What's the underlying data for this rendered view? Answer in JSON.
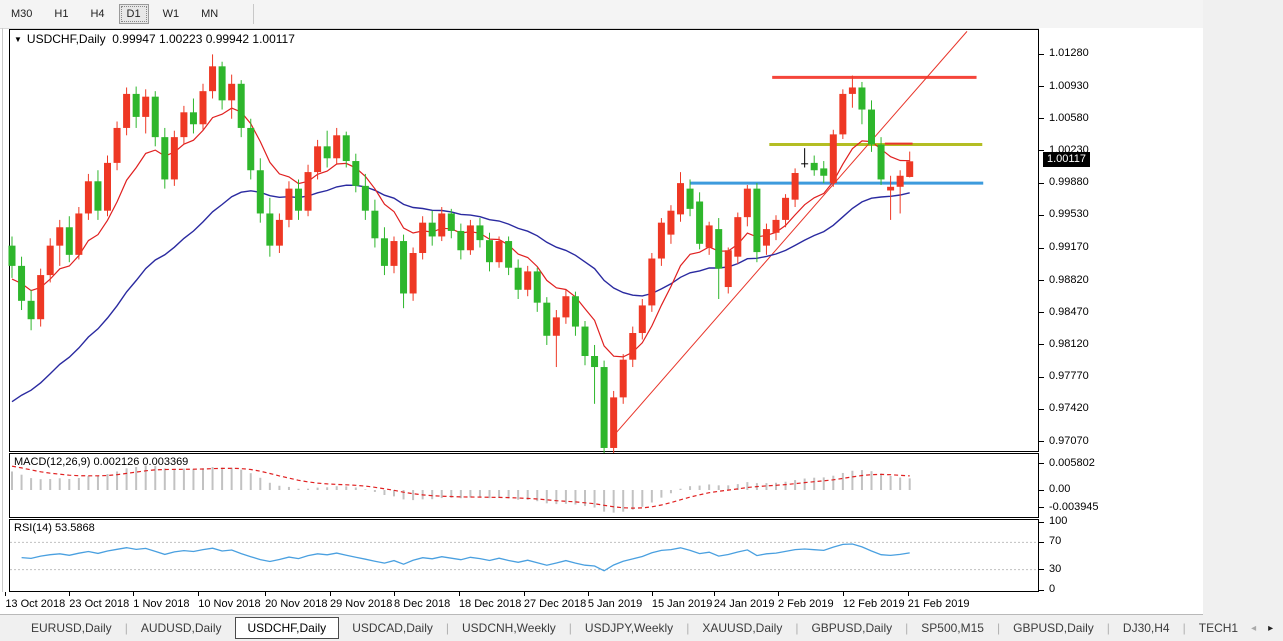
{
  "toolbar": {
    "timeframes": [
      "M30",
      "H1",
      "H4",
      "D1",
      "W1",
      "MN"
    ],
    "active": "D1"
  },
  "title": {
    "dropdown_icon": "▼",
    "symbol": "USDCHF,Daily",
    "ohlc": "0.99947 1.00223 0.99942 1.00117"
  },
  "indicators": {
    "macd_label": "MACD(12,26,9)",
    "macd_values": "0.002126 0.003369",
    "rsi_label": "RSI(14)",
    "rsi_value": "53.5868"
  },
  "price_axis": {
    "labels": [
      "1.01280",
      "1.00930",
      "1.00580",
      "1.00230",
      "0.99880",
      "0.99530",
      "0.99170",
      "0.98820",
      "0.98470",
      "0.98120",
      "0.97770",
      "0.97420",
      "0.97070"
    ],
    "current": "1.00117",
    "current_value": 1.00117
  },
  "macd_axis": [
    "0.005802",
    "0.00",
    "-0.003945"
  ],
  "rsi_axis": [
    "100",
    "70",
    "30",
    "0"
  ],
  "date_axis": [
    {
      "label": "13 Oct 2018",
      "i": -0.7
    },
    {
      "label": "23 Oct 2018",
      "i": 6.0
    },
    {
      "label": "1 Nov 2018",
      "i": 12.7
    },
    {
      "label": "10 Nov 2018",
      "i": 19.5
    },
    {
      "label": "20 Nov 2018",
      "i": 26.5
    },
    {
      "label": "29 Nov 2018",
      "i": 33.3
    },
    {
      "label": "8 Dec 2018",
      "i": 40.0
    },
    {
      "label": "18 Dec 2018",
      "i": 46.8
    },
    {
      "label": "27 Dec 2018",
      "i": 53.6
    },
    {
      "label": "5 Jan 2019",
      "i": 60.3
    },
    {
      "label": "15 Jan 2019",
      "i": 67.0
    },
    {
      "label": "24 Jan 2019",
      "i": 73.5
    },
    {
      "label": "2 Feb 2019",
      "i": 80.2
    },
    {
      "label": "12 Feb 2019",
      "i": 87.0
    },
    {
      "label": "21 Feb 2019",
      "i": 93.8
    }
  ],
  "chart_data": {
    "type": "candlestick",
    "symbol": "USDCHF",
    "timeframe": "Daily",
    "title": "USDCHF,Daily  0.99947 1.00223 0.99942 1.00117",
    "ylim": [
      0.96967,
      1.01545
    ],
    "x0": 2,
    "dx": 9.55,
    "candle_w": 7,
    "colors": {
      "up": "#ee3824",
      "down": "#2eb62c",
      "doji": "#000000",
      "ma_fast": "#e02020",
      "ma_slow": "#2a2aa0"
    },
    "ohlc": [
      [
        0.992,
        0.993,
        0.9885,
        0.9898
      ],
      [
        0.9898,
        0.9908,
        0.985,
        0.986
      ],
      [
        0.986,
        0.9872,
        0.9828,
        0.984
      ],
      [
        0.984,
        0.9895,
        0.9832,
        0.9888
      ],
      [
        0.9888,
        0.9928,
        0.988,
        0.992
      ],
      [
        0.992,
        0.9948,
        0.9898,
        0.994
      ],
      [
        0.994,
        0.9952,
        0.9902,
        0.991
      ],
      [
        0.991,
        0.9962,
        0.9905,
        0.9955
      ],
      [
        0.9955,
        0.9998,
        0.9948,
        0.999
      ],
      [
        0.999,
        1.0002,
        0.9948,
        0.9958
      ],
      [
        0.9958,
        1.0018,
        0.9952,
        1.001
      ],
      [
        1.001,
        1.0055,
        1.0002,
        1.0048
      ],
      [
        1.0048,
        1.0092,
        1.004,
        1.0085
      ],
      [
        1.0085,
        1.0093,
        1.0048,
        1.006
      ],
      [
        1.006,
        1.009,
        1.0042,
        1.0082
      ],
      [
        1.0082,
        1.0088,
        1.0028,
        1.0038
      ],
      [
        1.0038,
        1.0048,
        0.9982,
        0.9992
      ],
      [
        0.9992,
        1.0045,
        0.9985,
        1.0038
      ],
      [
        1.0038,
        1.0072,
        1.003,
        1.0065
      ],
      [
        1.0065,
        1.008,
        1.0042,
        1.0052
      ],
      [
        1.0052,
        1.0096,
        1.0046,
        1.0088
      ],
      [
        1.0088,
        1.0128,
        1.008,
        1.0115
      ],
      [
        1.0115,
        1.012,
        1.0068,
        1.0078
      ],
      [
        1.0078,
        1.0106,
        1.0058,
        1.0096
      ],
      [
        1.0096,
        1.01,
        1.0038,
        1.0048
      ],
      [
        1.0048,
        1.0058,
        0.9992,
        1.0002
      ],
      [
        1.0002,
        1.0015,
        0.9945,
        0.9955
      ],
      [
        0.9955,
        0.9972,
        0.9908,
        0.992
      ],
      [
        0.992,
        0.9955,
        0.9912,
        0.9948
      ],
      [
        0.9948,
        0.999,
        0.994,
        0.9982
      ],
      [
        0.9982,
        0.9992,
        0.9948,
        0.9958
      ],
      [
        0.9958,
        1.0008,
        0.9952,
        1.0
      ],
      [
        1.0,
        1.0035,
        0.9992,
        1.0028
      ],
      [
        1.0028,
        1.0045,
        1.0005,
        1.0015
      ],
      [
        1.0015,
        1.0048,
        1.0008,
        1.004
      ],
      [
        1.004,
        1.0044,
        1.0005,
        1.0012
      ],
      [
        1.0012,
        1.002,
        0.9978,
        0.9985
      ],
      [
        0.9985,
        0.9998,
        0.9948,
        0.9958
      ],
      [
        0.9958,
        0.997,
        0.9918,
        0.9928
      ],
      [
        0.9928,
        0.994,
        0.9888,
        0.9898
      ],
      [
        0.9898,
        0.993,
        0.989,
        0.9925
      ],
      [
        0.9925,
        0.9932,
        0.9852,
        0.9868
      ],
      [
        0.9868,
        0.9918,
        0.986,
        0.9912
      ],
      [
        0.9912,
        0.9952,
        0.9905,
        0.9945
      ],
      [
        0.9945,
        0.9958,
        0.992,
        0.993
      ],
      [
        0.993,
        0.9962,
        0.9925,
        0.9955
      ],
      [
        0.9955,
        0.996,
        0.9928,
        0.9936
      ],
      [
        0.9936,
        0.9944,
        0.9905,
        0.9915
      ],
      [
        0.9915,
        0.9948,
        0.991,
        0.9942
      ],
      [
        0.9942,
        0.995,
        0.9918,
        0.9926
      ],
      [
        0.9926,
        0.9934,
        0.9892,
        0.9902
      ],
      [
        0.9902,
        0.993,
        0.9896,
        0.9925
      ],
      [
        0.9925,
        0.993,
        0.9888,
        0.9896
      ],
      [
        0.9896,
        0.9905,
        0.9862,
        0.9872
      ],
      [
        0.9872,
        0.9898,
        0.9865,
        0.9892
      ],
      [
        0.9892,
        0.9896,
        0.9848,
        0.9858
      ],
      [
        0.9858,
        0.9864,
        0.9812,
        0.9822
      ],
      [
        0.9822,
        0.985,
        0.9788,
        0.9842
      ],
      [
        0.9842,
        0.9872,
        0.9835,
        0.9865
      ],
      [
        0.9865,
        0.987,
        0.9822,
        0.9832
      ],
      [
        0.9832,
        0.9838,
        0.979,
        0.98
      ],
      [
        0.98,
        0.9812,
        0.9748,
        0.9788
      ],
      [
        0.9788,
        0.9795,
        0.9672,
        0.97
      ],
      [
        0.97,
        0.9762,
        0.9692,
        0.9755
      ],
      [
        0.9755,
        0.9802,
        0.9748,
        0.9796
      ],
      [
        0.9796,
        0.9832,
        0.9788,
        0.9825
      ],
      [
        0.9825,
        0.9862,
        0.9818,
        0.9855
      ],
      [
        0.9855,
        0.9912,
        0.9848,
        0.9906
      ],
      [
        0.9906,
        0.995,
        0.9898,
        0.9945
      ],
      [
        0.9932,
        0.9964,
        0.9922,
        0.9958
      ],
      [
        0.9954,
        1.0,
        0.9946,
        0.9988
      ],
      [
        0.9982,
        0.9992,
        0.9952,
        0.996
      ],
      [
        0.9968,
        0.9978,
        0.9916,
        0.9922
      ],
      [
        0.9918,
        0.9946,
        0.991,
        0.9942
      ],
      [
        0.9938,
        0.995,
        0.9862,
        0.9895
      ],
      [
        0.9875,
        0.9918,
        0.9868,
        0.9915
      ],
      [
        0.9908,
        0.9956,
        0.99,
        0.9951
      ],
      [
        0.9951,
        0.9986,
        0.9941,
        0.9982
      ],
      [
        0.9982,
        0.9988,
        0.9902,
        0.9913
      ],
      [
        0.992,
        0.9944,
        0.991,
        0.9938
      ],
      [
        0.9934,
        0.9953,
        0.9926,
        0.9948
      ],
      [
        0.9948,
        0.9976,
        0.994,
        0.9972
      ],
      [
        0.997,
        1.0004,
        0.9962,
        0.9999
      ],
      [
        1.0009,
        1.0026,
        1.0005,
        1.0009
      ],
      [
        1.001,
        1.0018,
        0.9996,
        1.0002
      ],
      [
        1.0004,
        1.0012,
        0.9988,
        0.9996
      ],
      [
        0.9988,
        1.0046,
        0.9984,
        1.0041
      ],
      [
        1.0041,
        1.009,
        1.0036,
        1.0085
      ],
      [
        1.0085,
        1.0105,
        1.007,
        1.0092
      ],
      [
        1.0092,
        1.0098,
        1.0052,
        1.0068
      ],
      [
        1.0068,
        1.0078,
        1.0022,
        1.003
      ],
      [
        1.003,
        1.0038,
        0.9986,
        0.9992
      ],
      [
        0.998,
        0.9996,
        0.9948,
        0.9984
      ],
      [
        0.9984,
        1.0002,
        0.9955,
        0.9996
      ],
      [
        0.99947,
        1.00223,
        0.99942,
        1.00117
      ]
    ],
    "ma_fast": {
      "alpha": 0.2,
      "seed": 0.988
    },
    "ma_slow": {
      "alpha": 0.065,
      "seed": 0.974
    },
    "objects": {
      "resistance_red": {
        "price": 1.0103,
        "i1": 79.6,
        "i2": 101.0,
        "color": "#f5453a",
        "width": 3
      },
      "level_olive": {
        "price": 1.003,
        "i1": 79.3,
        "i2": 101.6,
        "color": "#b4be23",
        "width": 3
      },
      "support_blue": {
        "price": 0.9988,
        "i1": 71.0,
        "i2": 101.7,
        "color": "#3d9bdd",
        "width": 3
      },
      "trendline": {
        "i1": 62.8,
        "p1": 0.9711,
        "i2": 100.0,
        "p2": 1.0153,
        "color": "#e8352a",
        "width": 1
      },
      "price_tick_red": {
        "price": 1.0031,
        "i1": 91.4,
        "i2": 94.3,
        "color": "#e8352a",
        "width": 2
      }
    },
    "macd": {
      "alpha_fast": 0.1538,
      "alpha_slow": 0.0741,
      "alpha_sig": 0.2,
      "seed_fast_off": 0.0016,
      "seed_slow_off": -0.003,
      "seed_sig": 0.0056,
      "scale": 0.000223,
      "zero_y": 36,
      "hist_color": "#c2c2c2",
      "sig_color": "#e02020",
      "current_main": 0.002126,
      "current_signal": 0.003369
    },
    "rsi": {
      "period": 14,
      "color": "#4aa0e0",
      "levels": [
        70,
        30
      ],
      "level_color": "#c0c0c0",
      "current": 53.5868
    }
  },
  "tabbar": {
    "separator": "|",
    "tabs": [
      "EURUSD,Daily",
      "AUDUSD,Daily",
      "USDCHF,Daily",
      "USDCAD,Daily",
      "USDCNH,Weekly",
      "USDJPY,Weekly",
      "XAUUSD,Daily",
      "GBPUSD,Daily",
      "SP500,M15",
      "GBPUSD,Daily",
      "DJ30,H4",
      "TECH1"
    ],
    "active_index": 2,
    "scroll_left": "◂",
    "scroll_right": "▸"
  }
}
